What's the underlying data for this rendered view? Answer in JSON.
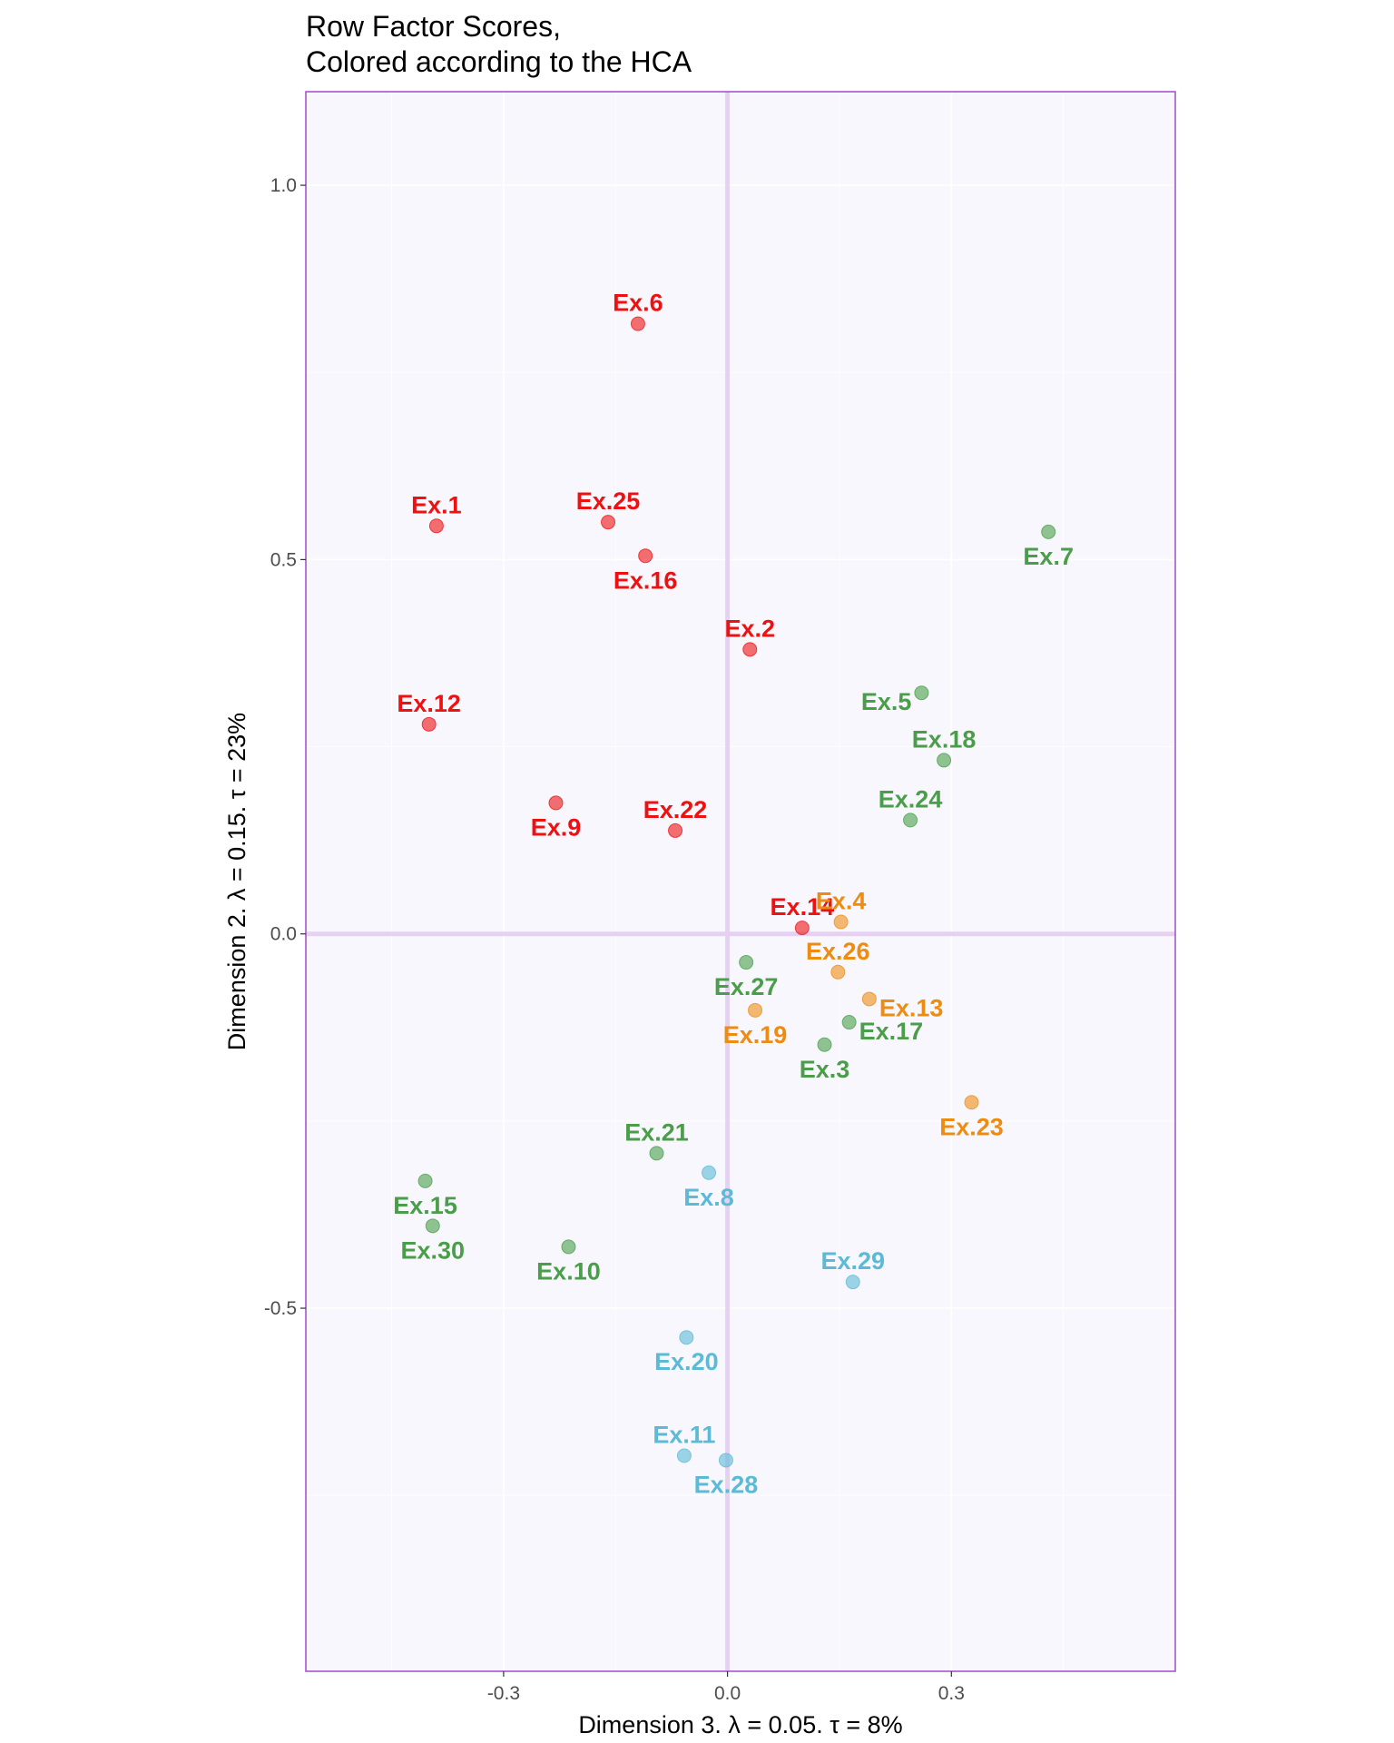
{
  "chart_data": {
    "type": "scatter",
    "title": [
      "Row Factor Scores,",
      "Colored according to the HCA"
    ],
    "xlabel": "Dimension 3.   λ = 0.05.  τ = 8%",
    "ylabel": "Dimension 2.   λ = 0.15.  τ = 23%",
    "xlim": [
      -0.565,
      0.6
    ],
    "ylim": [
      -0.985,
      1.125
    ],
    "xticks": [
      -0.3,
      0.0,
      0.3
    ],
    "xtick_labels": [
      "-0.3",
      "0.0",
      "0.3"
    ],
    "yticks": [
      -0.5,
      0.0,
      0.5,
      1.0
    ],
    "ytick_labels": [
      "-0.5",
      "0.0",
      "0.5",
      "1.0"
    ],
    "grid": true,
    "legend": "none",
    "colors": {
      "panel_background": "#f8f7fd",
      "panel_border": "#a04ccb",
      "gridline": "#ffffff",
      "origin_lines": "#e6d1f2",
      "red_cluster": "#ee1111",
      "green_cluster": "#4a9e4a",
      "orange_cluster": "#ee8c12",
      "blue_cluster": "#5bbad6"
    },
    "points": [
      {
        "label": "Ex.6",
        "x": -0.12,
        "y": 0.815,
        "group": "red",
        "label_pos": "above"
      },
      {
        "label": "Ex.1",
        "x": -0.39,
        "y": 0.545,
        "group": "red",
        "label_pos": "above"
      },
      {
        "label": "Ex.25",
        "x": -0.16,
        "y": 0.55,
        "group": "red",
        "label_pos": "above"
      },
      {
        "label": "Ex.16",
        "x": -0.11,
        "y": 0.505,
        "group": "red",
        "label_pos": "below"
      },
      {
        "label": "Ex.2",
        "x": 0.03,
        "y": 0.38,
        "group": "red",
        "label_pos": "above"
      },
      {
        "label": "Ex.12",
        "x": -0.4,
        "y": 0.28,
        "group": "red",
        "label_pos": "above"
      },
      {
        "label": "Ex.9",
        "x": -0.23,
        "y": 0.175,
        "group": "red",
        "label_pos": "below"
      },
      {
        "label": "Ex.22",
        "x": -0.07,
        "y": 0.138,
        "group": "red",
        "label_pos": "above"
      },
      {
        "label": "Ex.14",
        "x": 0.1,
        "y": 0.008,
        "group": "red",
        "label_pos": "above"
      },
      {
        "label": "Ex.7",
        "x": 0.43,
        "y": 0.537,
        "group": "green",
        "label_pos": "below"
      },
      {
        "label": "Ex.5",
        "x": 0.26,
        "y": 0.322,
        "group": "green",
        "label_pos": "left"
      },
      {
        "label": "Ex.18",
        "x": 0.29,
        "y": 0.232,
        "group": "green",
        "label_pos": "above"
      },
      {
        "label": "Ex.24",
        "x": 0.245,
        "y": 0.152,
        "group": "green",
        "label_pos": "above"
      },
      {
        "label": "Ex.27",
        "x": 0.025,
        "y": -0.038,
        "group": "green",
        "label_pos": "below"
      },
      {
        "label": "Ex.17",
        "x": 0.163,
        "y": -0.118,
        "group": "green",
        "label_pos": "right"
      },
      {
        "label": "Ex.3",
        "x": 0.13,
        "y": -0.148,
        "group": "green",
        "label_pos": "below"
      },
      {
        "label": "Ex.21",
        "x": -0.095,
        "y": -0.293,
        "group": "green",
        "label_pos": "above"
      },
      {
        "label": "Ex.15",
        "x": -0.405,
        "y": -0.33,
        "group": "green",
        "label_pos": "below"
      },
      {
        "label": "Ex.30",
        "x": -0.395,
        "y": -0.39,
        "group": "green",
        "label_pos": "below"
      },
      {
        "label": "Ex.10",
        "x": -0.213,
        "y": -0.418,
        "group": "green",
        "label_pos": "below"
      },
      {
        "label": "Ex.4",
        "x": 0.152,
        "y": 0.016,
        "group": "orange",
        "label_pos": "above"
      },
      {
        "label": "Ex.26",
        "x": 0.148,
        "y": -0.051,
        "group": "orange",
        "label_pos": "above"
      },
      {
        "label": "Ex.13",
        "x": 0.19,
        "y": -0.087,
        "group": "orange",
        "label_pos": "right"
      },
      {
        "label": "Ex.19",
        "x": 0.037,
        "y": -0.102,
        "group": "orange",
        "label_pos": "below"
      },
      {
        "label": "Ex.23",
        "x": 0.327,
        "y": -0.225,
        "group": "orange",
        "label_pos": "below"
      },
      {
        "label": "Ex.8",
        "x": -0.025,
        "y": -0.319,
        "group": "blue",
        "label_pos": "below"
      },
      {
        "label": "Ex.29",
        "x": 0.168,
        "y": -0.465,
        "group": "blue",
        "label_pos": "above"
      },
      {
        "label": "Ex.20",
        "x": -0.055,
        "y": -0.539,
        "group": "blue",
        "label_pos": "below"
      },
      {
        "label": "Ex.11",
        "x": -0.058,
        "y": -0.697,
        "group": "blue",
        "label_pos": "above"
      },
      {
        "label": "Ex.28",
        "x": -0.002,
        "y": -0.703,
        "group": "blue",
        "label_pos": "below"
      }
    ]
  }
}
